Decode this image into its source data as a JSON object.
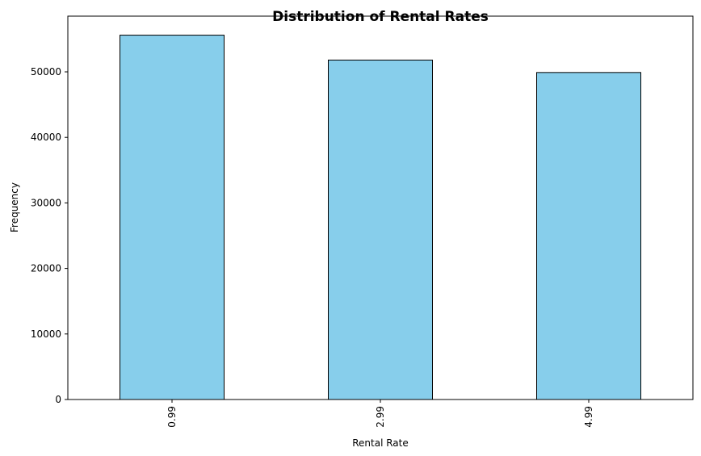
{
  "chart_data": {
    "type": "bar",
    "title": "Distribution of Rental Rates",
    "xlabel": "Rental Rate",
    "ylabel": "Frequency",
    "categories": [
      "0.99",
      "2.99",
      "4.99"
    ],
    "values": [
      55600,
      51800,
      49900
    ],
    "ylim": [
      0,
      58500
    ],
    "yticks": [
      0,
      10000,
      20000,
      30000,
      40000,
      50000
    ],
    "x_tick_rotation": 90,
    "grid": false,
    "legend": "none",
    "bar_color": "#87CEEB",
    "bar_edge_color": "#000000"
  }
}
